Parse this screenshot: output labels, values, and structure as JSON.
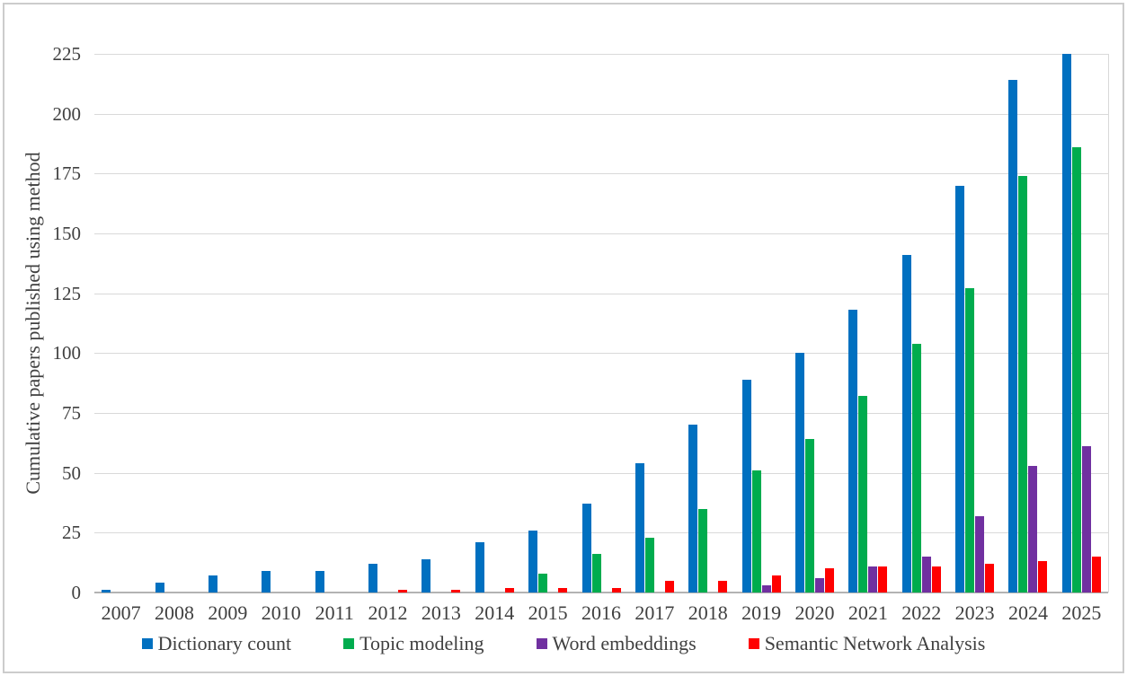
{
  "chart_data": {
    "type": "bar",
    "title": "",
    "xlabel": "",
    "ylabel": "Cumulative papers published using method",
    "categories": [
      "2007",
      "2008",
      "2009",
      "2010",
      "2011",
      "2012",
      "2013",
      "2014",
      "2015",
      "2016",
      "2017",
      "2018",
      "2019",
      "2020",
      "2021",
      "2022",
      "2023",
      "2024",
      "2025"
    ],
    "series": [
      {
        "name": "Dictionary count",
        "color": "#0070C0",
        "values": [
          1,
          4,
          7,
          9,
          9,
          12,
          14,
          21,
          26,
          37,
          54,
          70,
          89,
          100,
          118,
          141,
          170,
          214,
          225
        ]
      },
      {
        "name": "Topic modeling",
        "color": "#00AC4E",
        "values": [
          0,
          0,
          0,
          0,
          0,
          0,
          0,
          0,
          8,
          16,
          23,
          35,
          51,
          64,
          82,
          104,
          127,
          174,
          186
        ]
      },
      {
        "name": "Word embeddings",
        "color": "#7030A0",
        "values": [
          0,
          0,
          0,
          0,
          0,
          0,
          0,
          0,
          0,
          0,
          0,
          0,
          3,
          6,
          11,
          15,
          32,
          53,
          61
        ]
      },
      {
        "name": "Semantic Network Analysis",
        "color": "#FF0000",
        "values": [
          0,
          0,
          0,
          0,
          0,
          1,
          1,
          2,
          2,
          2,
          5,
          5,
          7,
          10,
          11,
          11,
          12,
          13,
          15
        ]
      }
    ],
    "ylim": [
      0,
      225
    ],
    "ytick_step": 25,
    "grid": true,
    "legend_position": "bottom"
  },
  "colors": {
    "grid": "#d9d9d9",
    "axis": "#b3b3b3",
    "text": "#404040",
    "frame": "#cccccc"
  }
}
